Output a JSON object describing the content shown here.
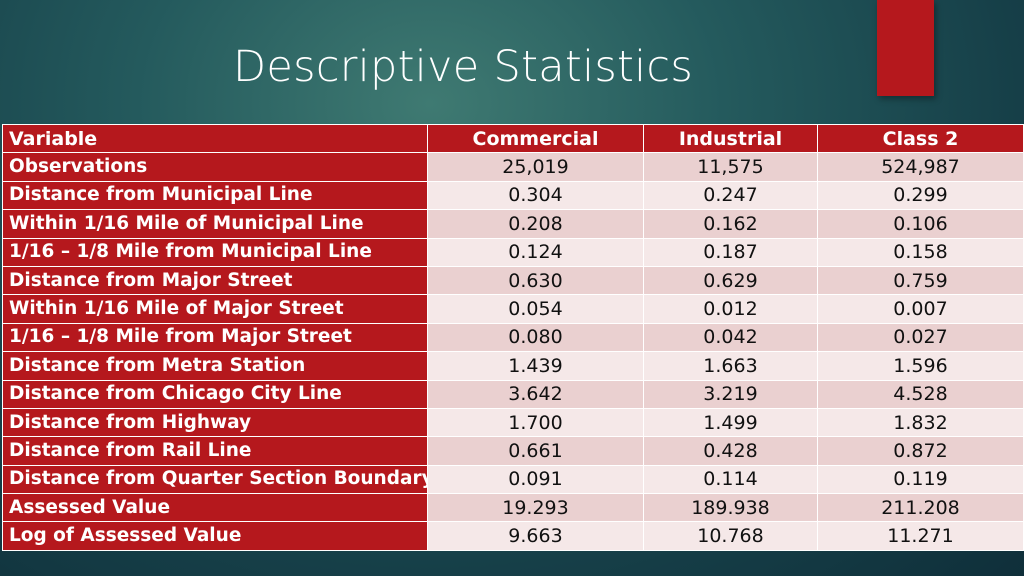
{
  "slide": {
    "title": "Descriptive Statistics"
  },
  "colors": {
    "header_red": "#b5181d",
    "row_light": "#f5e8e8",
    "row_dark": "#ead0d0",
    "background": "#245a5d"
  },
  "table": {
    "headers": [
      "Variable",
      "Commercial",
      "Industrial",
      "Class 2"
    ],
    "rows": [
      {
        "label": "Observations",
        "values": [
          "25,019",
          "11,575",
          "524,987"
        ]
      },
      {
        "label": "Distance from Municipal Line",
        "values": [
          "0.304",
          "0.247",
          "0.299"
        ]
      },
      {
        "label": "Within 1/16 Mile of Municipal Line",
        "values": [
          "0.208",
          "0.162",
          "0.106"
        ]
      },
      {
        "label": "1/16 – 1/8 Mile from Municipal Line",
        "values": [
          "0.124",
          "0.187",
          "0.158"
        ]
      },
      {
        "label": "Distance from Major Street",
        "values": [
          "0.630",
          "0.629",
          "0.759"
        ]
      },
      {
        "label": "Within 1/16 Mile of Major Street",
        "values": [
          "0.054",
          "0.012",
          "0.007"
        ]
      },
      {
        "label": "1/16 – 1/8 Mile from Major Street",
        "values": [
          "0.080",
          "0.042",
          "0.027"
        ]
      },
      {
        "label": "Distance from Metra Station",
        "values": [
          "1.439",
          "1.663",
          "1.596"
        ]
      },
      {
        "label": "Distance from Chicago City Line",
        "values": [
          "3.642",
          "3.219",
          "4.528"
        ]
      },
      {
        "label": "Distance from Highway",
        "values": [
          "1.700",
          "1.499",
          "1.832"
        ]
      },
      {
        "label": "Distance from Rail Line",
        "values": [
          "0.661",
          "0.428",
          "0.872"
        ]
      },
      {
        "label": "Distance from Quarter Section Boundary",
        "values": [
          "0.091",
          "0.114",
          "0.119"
        ]
      },
      {
        "label": "Assessed Value",
        "values": [
          "19.293",
          "189.938",
          "211.208"
        ]
      },
      {
        "label": "Log of Assessed Value",
        "values": [
          "9.663",
          "10.768",
          "11.271"
        ]
      }
    ]
  }
}
